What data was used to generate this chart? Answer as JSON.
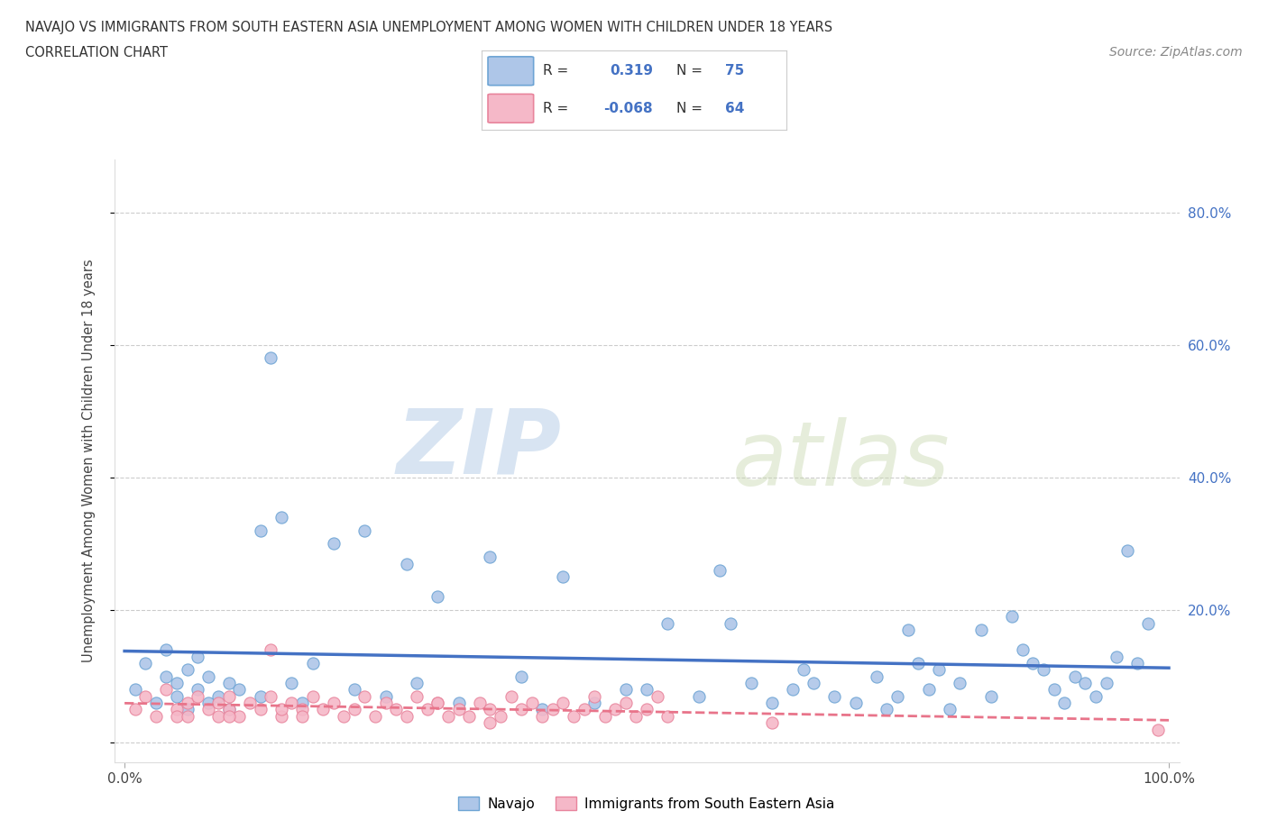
{
  "title_line1": "NAVAJO VS IMMIGRANTS FROM SOUTH EASTERN ASIA UNEMPLOYMENT AMONG WOMEN WITH CHILDREN UNDER 18 YEARS",
  "title_line2": "CORRELATION CHART",
  "source_text": "Source: ZipAtlas.com",
  "ylabel": "Unemployment Among Women with Children Under 18 years",
  "navajo_color": "#aec6e8",
  "navajo_edge_color": "#6da4d4",
  "immigrant_color": "#f5b8c8",
  "immigrant_edge_color": "#e8849c",
  "navajo_line_color": "#4472c4",
  "immigrant_line_color": "#e8748a",
  "navajo_R": 0.319,
  "navajo_N": 75,
  "immigrant_R": -0.068,
  "immigrant_N": 64,
  "background_color": "#ffffff",
  "grid_color": "#cccccc",
  "watermark_zip": "ZIP",
  "watermark_atlas": "atlas",
  "navajo_x": [
    1,
    2,
    3,
    4,
    4,
    5,
    5,
    6,
    6,
    7,
    7,
    8,
    8,
    9,
    10,
    10,
    11,
    13,
    14,
    15,
    16,
    17,
    18,
    20,
    22,
    25,
    27,
    30,
    32,
    35,
    38,
    40,
    42,
    45,
    50,
    52,
    55,
    58,
    60,
    62,
    65,
    66,
    68,
    70,
    72,
    73,
    74,
    75,
    76,
    77,
    78,
    79,
    80,
    82,
    83,
    85,
    86,
    87,
    88,
    89,
    90,
    91,
    92,
    93,
    94,
    95,
    96,
    97,
    98,
    13,
    23,
    28,
    48,
    64,
    57
  ],
  "navajo_y": [
    8,
    12,
    6,
    10,
    14,
    7,
    9,
    5,
    11,
    8,
    13,
    6,
    10,
    7,
    9,
    5,
    8,
    32,
    58,
    34,
    9,
    6,
    12,
    30,
    8,
    7,
    27,
    22,
    6,
    28,
    10,
    5,
    25,
    6,
    8,
    18,
    7,
    18,
    9,
    6,
    11,
    9,
    7,
    6,
    10,
    5,
    7,
    17,
    12,
    8,
    11,
    5,
    9,
    17,
    7,
    19,
    14,
    12,
    11,
    8,
    6,
    10,
    9,
    7,
    9,
    13,
    29,
    12,
    18,
    7,
    32,
    9,
    8,
    8,
    26
  ],
  "immigrant_x": [
    1,
    2,
    3,
    4,
    5,
    5,
    6,
    6,
    7,
    8,
    9,
    9,
    10,
    10,
    11,
    12,
    13,
    14,
    14,
    15,
    16,
    17,
    17,
    18,
    19,
    20,
    21,
    22,
    23,
    24,
    25,
    26,
    27,
    28,
    29,
    30,
    31,
    32,
    33,
    34,
    35,
    36,
    37,
    38,
    39,
    40,
    41,
    42,
    43,
    44,
    45,
    46,
    47,
    48,
    49,
    50,
    51,
    52,
    99,
    15,
    30,
    10,
    62,
    35
  ],
  "immigrant_y": [
    5,
    7,
    4,
    8,
    5,
    4,
    6,
    4,
    7,
    5,
    4,
    6,
    5,
    7,
    4,
    6,
    5,
    7,
    14,
    4,
    6,
    5,
    4,
    7,
    5,
    6,
    4,
    5,
    7,
    4,
    6,
    5,
    4,
    7,
    5,
    6,
    4,
    5,
    4,
    6,
    5,
    4,
    7,
    5,
    6,
    4,
    5,
    6,
    4,
    5,
    7,
    4,
    5,
    6,
    4,
    5,
    7,
    4,
    2,
    5,
    6,
    4,
    3,
    3
  ]
}
